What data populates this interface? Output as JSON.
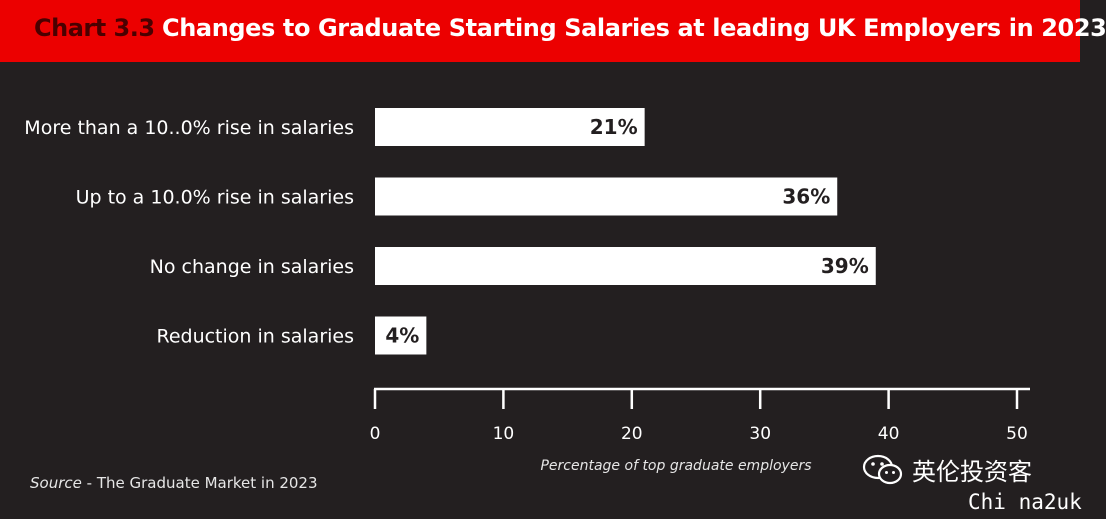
{
  "header": {
    "chart_number": "Chart 3.3",
    "title": "Changes to Graduate Starting Salaries at leading UK Employers in 2023"
  },
  "source": {
    "label": "Source",
    "text": "- The Graduate Market in 2023"
  },
  "watermark": {
    "icon": "wechat-icon",
    "name": "英伦投资客",
    "sub": "Chi na2uk"
  },
  "colors": {
    "background": "#231f20",
    "title_bar": "#ec0000",
    "bar": "#ffffff",
    "text": "#ffffff"
  },
  "chart_data": {
    "type": "bar",
    "orientation": "horizontal",
    "categories": [
      "More than a 10..0% rise in salaries",
      "Up to a 10.0% rise in salaries",
      "No change in salaries",
      "Reduction in salaries"
    ],
    "values": [
      21,
      36,
      39,
      4
    ],
    "value_labels": [
      "21%",
      "36%",
      "39%",
      "4%"
    ],
    "xlabel": "Percentage of top graduate employers",
    "xlim": [
      0,
      50
    ],
    "xticks": [
      0,
      10,
      20,
      30,
      40,
      50
    ],
    "grid": false,
    "legend": "none"
  }
}
